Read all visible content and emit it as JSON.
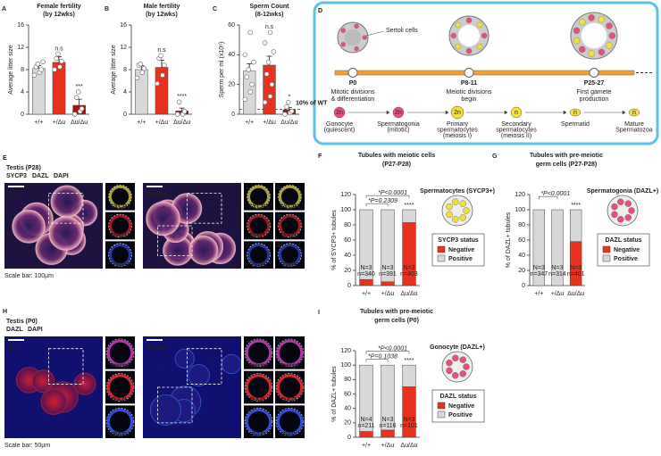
{
  "chart_data": [
    {
      "type": "bar",
      "panel": "A",
      "title": "Female fertility",
      "subtitle": "(by 12wks)",
      "ylabel": "Average litter size",
      "categories": [
        "+/+",
        "+/Δu",
        "Δu/Δu"
      ],
      "values": [
        8.2,
        9.3,
        1.6
      ],
      "errors": [
        0.5,
        1.0,
        1.1
      ],
      "points": [
        [
          7,
          7.5,
          8,
          8.5,
          9,
          9.4
        ],
        [
          8,
          8.5,
          9.5,
          10,
          10.8
        ],
        [
          0,
          0.5,
          1,
          3,
          4
        ]
      ],
      "colors": [
        "#d8d8d8",
        "#e8321e",
        "#9b1a0c"
      ],
      "bar_labels": [
        null,
        "n.s",
        "***"
      ],
      "ylim": [
        0,
        16
      ],
      "yticks": [
        0,
        4,
        8,
        12,
        16
      ]
    },
    {
      "type": "bar",
      "panel": "B",
      "title": "Male fertility",
      "subtitle": "(by 12wks)",
      "ylabel": "Average litter size",
      "categories": [
        "+/+",
        "+/Δu",
        "Δu/Δu"
      ],
      "values": [
        8,
        8.4,
        0.6
      ],
      "errors": [
        0.7,
        1.3,
        0.5
      ],
      "points": [
        [
          6.5,
          7.5,
          8.2,
          8.8,
          9
        ],
        [
          5.5,
          7,
          8.8,
          10,
          10.5
        ],
        [
          0,
          0,
          0.5,
          2.2
        ]
      ],
      "colors": [
        "#d8d8d8",
        "#e8321e",
        "#9b1a0c"
      ],
      "bar_labels": [
        null,
        "n.s",
        "****"
      ],
      "ylim": [
        0,
        16
      ],
      "yticks": [
        0,
        4,
        8,
        12,
        16
      ]
    },
    {
      "type": "bar",
      "panel": "C",
      "title": "Sperm Count",
      "subtitle": "(8-12wks)",
      "ylabel": "Sperm per ml (x10⁶)",
      "categories": [
        "+/+",
        "+/Δu",
        "Δu/Δu"
      ],
      "values": [
        29,
        33,
        3
      ],
      "errors": [
        5,
        6,
        1.5
      ],
      "points": [
        [
          10,
          15,
          20,
          25,
          30,
          35,
          40,
          55
        ],
        [
          8,
          12,
          20,
          27,
          35,
          42,
          48,
          55
        ],
        [
          0,
          1,
          2,
          5,
          8
        ]
      ],
      "colors": [
        "#d8d8d8",
        "#e8321e",
        "#9b1a0c"
      ],
      "bar_labels": [
        null,
        "n.s",
        "*"
      ],
      "reference": {
        "value": 3.3,
        "label": "10% of WT"
      },
      "ylim": [
        0,
        60
      ],
      "yticks": [
        0,
        20,
        40,
        60
      ]
    },
    {
      "type": "stacked_bar",
      "panel": "F",
      "title": "Tubules with meiotic cells",
      "subtitle": "(P27-P28)",
      "ylabel": "% of SYCP3+ tubules",
      "categories": [
        "+/+",
        "+/Δu",
        "Δu/Δu"
      ],
      "series": [
        {
          "name": "Negative",
          "color": "#e8321e",
          "values": [
            8,
            5,
            83
          ]
        },
        {
          "name": "Positive",
          "color": "#d8d8d8",
          "values": [
            92,
            95,
            17
          ]
        }
      ],
      "bar_notes": [
        [
          "N=3",
          "n=340"
        ],
        [
          "N=3",
          "n=391"
        ],
        [
          "N=3",
          "n=403"
        ]
      ],
      "stats": [
        "*P=0.2309",
        "*P<0.0001"
      ],
      "bar_labels": [
        null,
        null,
        "****"
      ],
      "legend_title": "SYCP3 status",
      "cell_label": "Spermatocytes (SYCP3+)",
      "cell_color": "#f3e03a",
      "ylim": [
        0,
        120
      ],
      "yticks": [
        0,
        20,
        40,
        60,
        80,
        100,
        120
      ]
    },
    {
      "type": "stacked_bar",
      "panel": "G",
      "title": "Tubules with pre-meiotic",
      "subtitle": "germ cells (P27-P28)",
      "ylabel": "% of DAZL+ tubules",
      "categories": [
        "+/+",
        "+/Δu",
        "Δu/Δu"
      ],
      "series": [
        {
          "name": "Negative",
          "color": "#e8321e",
          "values": [
            0,
            0,
            58
          ]
        },
        {
          "name": "Positive",
          "color": "#d8d8d8",
          "values": [
            100,
            100,
            42
          ]
        }
      ],
      "bar_notes": [
        [
          "N=3",
          "n=347"
        ],
        [
          "N=3",
          "n=314"
        ],
        [
          "N=3",
          "n=401"
        ]
      ],
      "stats": [
        "*P<0.0001"
      ],
      "bar_labels": [
        null,
        null,
        "****"
      ],
      "legend_title": "DAZL status",
      "cell_label": "Spermatogonia (DAZL+)",
      "cell_color": "#e8507a",
      "ylim": [
        0,
        120
      ],
      "yticks": [
        0,
        20,
        40,
        60,
        80,
        100,
        120
      ]
    },
    {
      "type": "stacked_bar",
      "panel": "I",
      "title": "Tubules with pre-meiotic",
      "subtitle": "germ cells (P0)",
      "ylabel": "% of DAZL+ tubules",
      "categories": [
        "+/+",
        "+/Δu",
        "Δu/Δu"
      ],
      "series": [
        {
          "name": "Negative",
          "color": "#e8321e",
          "values": [
            8,
            10,
            70
          ]
        },
        {
          "name": "Positive",
          "color": "#d8d8d8",
          "values": [
            92,
            90,
            30
          ]
        }
      ],
      "bar_notes": [
        [
          "N=4",
          "n=211"
        ],
        [
          "N=3",
          "n=116"
        ],
        [
          "N=3",
          "n=101"
        ]
      ],
      "stats": [
        "*P=0.1038",
        "*P<0.0001"
      ],
      "bar_labels": [
        null,
        null,
        "****"
      ],
      "legend_title": "DAZL status",
      "cell_label": "Gonocyte (DAZL+)",
      "cell_color": "#e8507a",
      "ylim": [
        0,
        120
      ],
      "yticks": [
        0,
        20,
        40,
        60,
        80,
        100,
        120
      ]
    }
  ],
  "diagram": {
    "panel": "D",
    "sertoli": "Sertoli cells",
    "stages": [
      {
        "label": "P0",
        "caption": [
          "Mitotic divisions",
          "& differentiation"
        ]
      },
      {
        "label": "P8-11",
        "caption": [
          "Meiotic divisions",
          "begin"
        ]
      },
      {
        "label": "P25-27",
        "caption": [
          "First gamete",
          "production"
        ]
      }
    ],
    "cells": [
      {
        "symbol": "2n",
        "label": [
          "Gonocyte",
          "(quiescent)"
        ]
      },
      {
        "symbol": "2n",
        "label": [
          "Spermatogonia",
          "(mitotic)"
        ]
      },
      {
        "symbol": "2n",
        "label": [
          "Primary",
          "spermatocytes",
          "(meiosis I)"
        ]
      },
      {
        "symbol": "n",
        "label": [
          "Secondary",
          "spermatocytes",
          "(meiosis II)"
        ]
      },
      {
        "symbol": "n",
        "label": [
          "Spermatid"
        ]
      },
      {
        "symbol": "n",
        "label": [
          "Mature",
          "Spermatozoa"
        ]
      }
    ]
  },
  "images": [
    {
      "panel": "E",
      "title": "Testis (P28)",
      "stains": [
        "SYCP3",
        "DAZL",
        "DAPI"
      ],
      "stain_colors": [
        "#f3e03a",
        "#ff3030",
        "#3a5cff"
      ],
      "genotypes": [
        "+/+",
        "Δu/Δu"
      ],
      "insets": [
        "SYCP3",
        "DAZL",
        "DAPI"
      ],
      "inset_numbers": [
        "1",
        "2"
      ],
      "marker": "*",
      "scale": "Scale bar: 100µm"
    },
    {
      "panel": "H",
      "title": "Testis (P0)",
      "stains": [
        "DAZL",
        "DAPI"
      ],
      "stain_colors": [
        "#ff3030",
        "#3a5cff"
      ],
      "genotypes": [
        "+/+",
        "Δu/Δu"
      ],
      "insets": [
        "merge",
        "DAZL",
        "DAPI"
      ],
      "inset_numbers": [
        "1",
        "2"
      ],
      "marker": "*",
      "scale": "Scale bar: 50µm"
    }
  ]
}
